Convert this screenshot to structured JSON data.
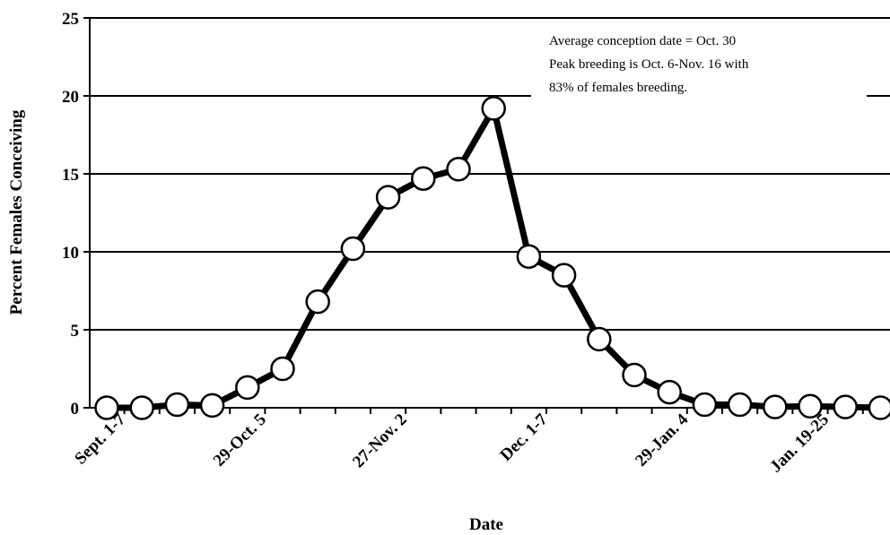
{
  "chart_data": {
    "type": "line",
    "xlabel": "Date",
    "ylabel": "Percent Females Conceiving",
    "ylim": [
      0,
      25
    ],
    "yticks": [
      0,
      5,
      10,
      15,
      20,
      25
    ],
    "x_tick_labels": [
      "Sept. 1-7",
      "29-Oct. 5",
      "27-Nov. 2",
      "Dec. 1-7",
      "29-Jan. 4",
      "Jan. 19-25"
    ],
    "grid": "horizontal",
    "marker": "open circle",
    "annotation": [
      "Average conception date = Oct. 30",
      "Peak breeding is Oct. 6-Nov. 16 with",
      "83% of females breeding."
    ],
    "series": [
      {
        "values": [
          0,
          0,
          0.2,
          0.15,
          1.3,
          2.5,
          6.8,
          10.2,
          13.5,
          14.7,
          15.3,
          19.2,
          9.7,
          8.5,
          4.4,
          2.1,
          1.0,
          0.2,
          0.2,
          0.05,
          0.1,
          0.05,
          0
        ]
      }
    ],
    "colors": {
      "line": "#000000",
      "marker_fill": "#ffffff",
      "grid": "#000000"
    }
  }
}
